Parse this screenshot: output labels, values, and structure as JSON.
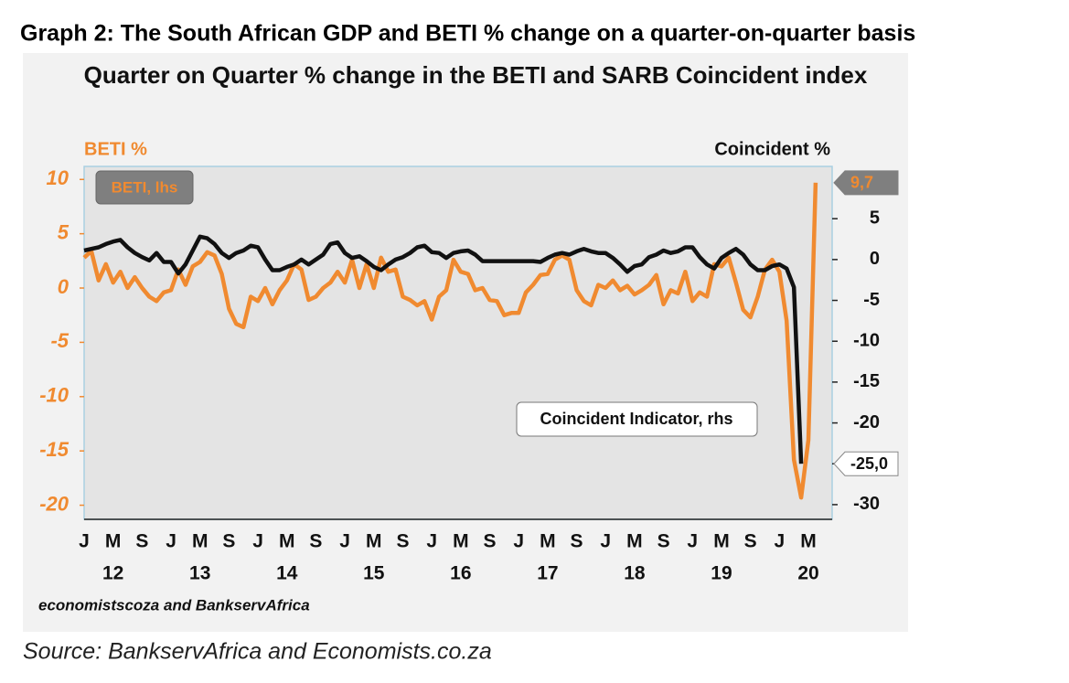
{
  "heading": "Graph 2: The South African GDP and BETI % change on a quarter-on-quarter basis",
  "source": "Source: BankservAfrica and Economists.co.za",
  "chart_data": {
    "type": "line",
    "title": "Quarter on Quarter % change in the BETI and SARB Coincident index",
    "ylabel": "BETI %",
    "y2label": "Coincident %",
    "credit": "economistscoza and BankservAfrica",
    "categories": [
      "J",
      null,
      null,
      null,
      "M",
      null,
      null,
      null,
      "S",
      null,
      null,
      null,
      "J",
      null,
      null,
      null,
      "M",
      null,
      null,
      null,
      "S",
      null,
      null,
      null,
      "J",
      null,
      null,
      null,
      "M",
      null,
      null,
      null,
      "S",
      null,
      null,
      null,
      "J",
      null,
      null,
      null,
      "M",
      null,
      null,
      null,
      "S",
      null,
      null,
      null,
      "J",
      null,
      null,
      null,
      "M",
      null,
      null,
      null,
      "S",
      null,
      null,
      null,
      "J",
      null,
      null,
      null,
      "M",
      null,
      null,
      null,
      "S",
      null,
      null,
      null,
      "J",
      null,
      null,
      null,
      "M",
      null,
      null,
      null,
      "S",
      null,
      null,
      null,
      "J",
      null,
      null,
      null,
      "M",
      null,
      null,
      null,
      "S",
      null,
      null,
      null,
      "J",
      null,
      null,
      null,
      "M",
      null
    ],
    "year_labels": [
      "12",
      "13",
      "14",
      "15",
      "16",
      "17",
      "18",
      "19",
      "20"
    ],
    "ylim": [
      -21.3,
      11.2
    ],
    "yticks": [
      10,
      5,
      0,
      -5,
      -10,
      -15,
      -20
    ],
    "y2lim": [
      -31.8,
      11.4
    ],
    "y2ticks": [
      5,
      0,
      -5,
      -10,
      -15,
      -20,
      -25,
      -30
    ],
    "series": [
      {
        "name": "BETI, lhs",
        "color": "#f08a30",
        "axis": "y",
        "values": [
          2.8,
          3.4,
          0.7,
          2.2,
          0.5,
          1.5,
          0,
          1,
          0,
          -0.8,
          -1.2,
          -0.4,
          -0.2,
          1.7,
          0.3,
          2.0,
          2.4,
          3.3,
          3.0,
          1.3,
          -1.9,
          -3.3,
          -3.6,
          -0.8,
          -1.2,
          0,
          -1.5,
          -0.2,
          0.7,
          2.2,
          1.7,
          -1.1,
          -0.8,
          0,
          0.5,
          1.5,
          0.5,
          2.6,
          0,
          2.2,
          0,
          2.8,
          1.5,
          1.7,
          -0.8,
          -1.1,
          -1.6,
          -1.2,
          -2.9,
          -0.8,
          -0.2,
          2.6,
          1.5,
          1.3,
          -0.2,
          0,
          -1.1,
          -1.2,
          -2.5,
          -2.3,
          -2.3,
          -0.4,
          0.3,
          1.2,
          1.3,
          2.6,
          3.0,
          2.6,
          -0.2,
          -1.2,
          -1.6,
          0.3,
          0,
          0.7,
          -0.2,
          0.2,
          -0.6,
          -0.2,
          0.3,
          1.2,
          -1.5,
          -0.2,
          -0.5,
          1.5,
          -1.2,
          -0.4,
          -0.8,
          2.2,
          2.0,
          2.8,
          0.5,
          -2.0,
          -2.7,
          -0.8,
          1.7,
          2.6,
          1.5,
          -3.0,
          -15.8,
          -19.3,
          -14.0,
          9.7
        ],
        "value_labels": [
          null,
          null,
          null,
          null,
          null,
          null,
          null,
          null,
          null,
          null,
          null,
          null,
          null,
          null,
          null,
          null,
          null,
          null,
          null,
          null,
          null,
          null,
          null,
          null,
          null,
          null,
          null,
          null,
          null,
          null,
          null,
          null,
          null,
          null,
          null,
          null,
          null,
          null,
          null,
          null,
          null,
          null,
          null,
          null,
          null,
          null,
          null,
          null,
          null,
          null,
          null,
          null,
          null,
          null,
          null,
          null,
          null,
          null,
          null,
          null,
          null,
          null,
          null,
          null,
          null,
          null,
          null,
          null,
          null,
          null,
          null,
          null,
          null,
          null,
          null,
          null,
          null,
          null,
          null,
          null,
          null,
          null,
          null,
          null,
          null,
          null,
          null,
          null,
          null,
          null,
          null,
          null,
          null,
          null,
          null,
          null,
          null,
          null,
          null,
          null,
          null,
          "9,7"
        ]
      },
      {
        "name": "Coincident Indicator, rhs",
        "color": "#111111",
        "axis": "y2",
        "values": [
          1.1,
          1.3,
          1.5,
          1.9,
          2.2,
          2.4,
          1.5,
          0.8,
          0.3,
          -0.1,
          0.8,
          -0.3,
          -0.3,
          -1.7,
          -0.6,
          1.1,
          2.8,
          2.6,
          1.9,
          0.8,
          0.2,
          0.8,
          1.1,
          1.7,
          1.5,
          0,
          -1.3,
          -1.3,
          -0.9,
          -0.6,
          0,
          -0.6,
          0,
          0.6,
          1.9,
          2.1,
          0.8,
          0.2,
          0.4,
          -0.2,
          -0.9,
          -1.3,
          -0.6,
          0,
          0.3,
          0.8,
          1.5,
          1.7,
          0.9,
          0.8,
          0.2,
          0.8,
          1.0,
          1.1,
          0.6,
          -0.2,
          -0.2,
          -0.2,
          -0.2,
          -0.2,
          -0.2,
          -0.2,
          -0.2,
          -0.3,
          0.2,
          0.6,
          0.8,
          0.6,
          1.0,
          1.3,
          1.0,
          0.8,
          0.8,
          0.2,
          -0.6,
          -1.5,
          -0.8,
          -0.6,
          0.3,
          0.6,
          1.1,
          0.8,
          1.0,
          1.5,
          1.5,
          0.3,
          -0.6,
          -1.1,
          0.2,
          0.8,
          1.3,
          0.6,
          -0.6,
          -1.3,
          -1.3,
          -0.8,
          -0.6,
          -1.1,
          -3.4,
          -25.0,
          null,
          null
        ],
        "value_labels": [
          null,
          null,
          null,
          null,
          null,
          null,
          null,
          null,
          null,
          null,
          null,
          null,
          null,
          null,
          null,
          null,
          null,
          null,
          null,
          null,
          null,
          null,
          null,
          null,
          null,
          null,
          null,
          null,
          null,
          null,
          null,
          null,
          null,
          null,
          null,
          null,
          null,
          null,
          null,
          null,
          null,
          null,
          null,
          null,
          null,
          null,
          null,
          null,
          null,
          null,
          null,
          null,
          null,
          null,
          null,
          null,
          null,
          null,
          null,
          null,
          null,
          null,
          null,
          null,
          null,
          null,
          null,
          null,
          null,
          null,
          null,
          null,
          null,
          null,
          null,
          null,
          null,
          null,
          null,
          null,
          null,
          null,
          null,
          null,
          null,
          null,
          null,
          null,
          null,
          null,
          null,
          null,
          null,
          null,
          null,
          null,
          null,
          null,
          null,
          "-25,0",
          null,
          null
        ]
      }
    ]
  }
}
